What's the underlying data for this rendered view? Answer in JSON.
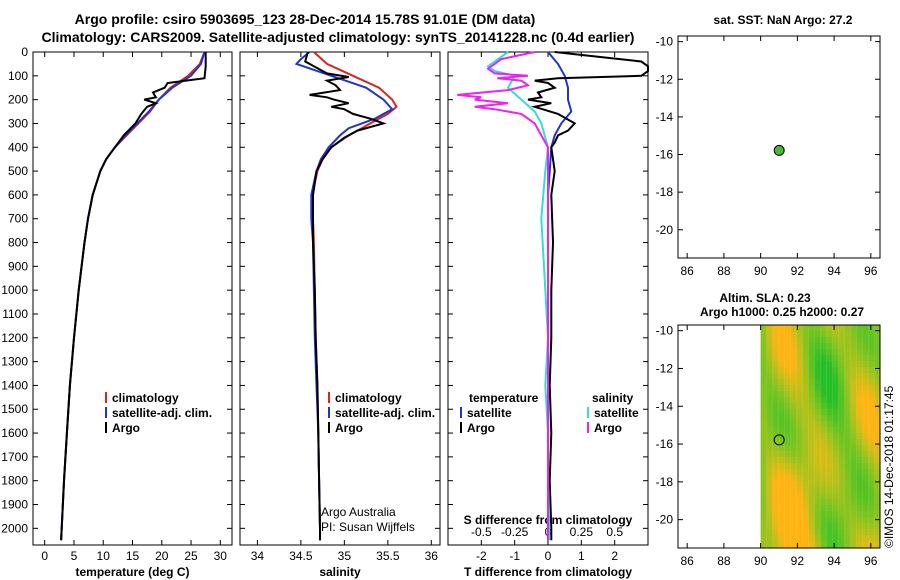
{
  "title_line1": "Argo profile: csiro 5903695_123 28-Dec-2014 15.78S 91.01E (DM data)",
  "title_line2": "Climatology: CARS2009. Satellite-adjusted climatology: synTS_20141228.nc (0.4d earlier)",
  "colors": {
    "clim": "#dd2222",
    "sat": "#2233cc",
    "argo": "#000000",
    "sal_clim": "#ee22ee",
    "sal_sat": "#33dddd",
    "sst_marker": "#44bb33"
  },
  "depth_axis": {
    "ticks": [
      0,
      100,
      200,
      300,
      400,
      500,
      600,
      700,
      800,
      900,
      1000,
      1100,
      1200,
      1300,
      1400,
      1500,
      1600,
      1700,
      1800,
      1900,
      2000
    ],
    "range": [
      0,
      2070
    ]
  },
  "credits": {
    "line1": "Argo Australia",
    "line2": "PI: Susan Wijffels"
  },
  "timestamp": "©IMOS 14-Dec-2018 01:17:45",
  "chart_data": [
    {
      "id": "temperature",
      "type": "line",
      "xlabel": "temperature (deg C)",
      "xticks": [
        0,
        5,
        10,
        15,
        20,
        25,
        30
      ],
      "xlim": [
        -2,
        32
      ],
      "legend": [
        "climatology",
        "satellite-adj. clim.",
        "Argo"
      ],
      "series": [
        {
          "name": "climatology",
          "depth": [
            0,
            50,
            100,
            150,
            200,
            250,
            300,
            350,
            400,
            450,
            500,
            600,
            700,
            800,
            900,
            1000,
            1200,
            1400,
            1600,
            1800,
            2000,
            2050
          ],
          "values": [
            27.3,
            26.5,
            24.5,
            21.5,
            19.5,
            18,
            16,
            14,
            12,
            10.5,
            9.5,
            8.2,
            7.4,
            6.8,
            6.3,
            5.8,
            5,
            4.3,
            3.8,
            3.3,
            2.9,
            2.8
          ]
        },
        {
          "name": "satellite-adj. clim.",
          "depth": [
            0,
            50,
            100,
            150,
            200,
            250,
            300,
            350,
            400,
            450,
            500,
            600,
            700,
            800,
            900,
            1000,
            1200,
            1400,
            1600,
            1800,
            2000,
            2050
          ],
          "values": [
            27.3,
            26.7,
            25,
            21.8,
            19.5,
            17.8,
            15.8,
            13.8,
            12,
            10.5,
            9.5,
            8.2,
            7.4,
            6.8,
            6.3,
            5.8,
            5,
            4.3,
            3.8,
            3.3,
            2.9,
            2.8
          ]
        },
        {
          "name": "Argo",
          "depth": [
            0,
            60,
            110,
            130,
            150,
            170,
            190,
            200,
            215,
            230,
            260,
            300,
            350,
            400,
            450,
            500,
            600,
            700,
            800,
            900,
            1000,
            1200,
            1400,
            1600,
            1800,
            2000,
            2050
          ],
          "values": [
            27.5,
            27.5,
            27.3,
            21,
            20.5,
            18.5,
            19,
            17,
            19,
            17.5,
            16.5,
            15.5,
            13.5,
            12,
            10.5,
            9.5,
            8.2,
            7.4,
            6.8,
            6.3,
            5.8,
            5,
            4.3,
            3.8,
            3.3,
            2.9,
            2.8
          ]
        }
      ]
    },
    {
      "id": "salinity",
      "type": "line",
      "xlabel": "salinity",
      "xticks": [
        34,
        34.5,
        35,
        35.5,
        36
      ],
      "xlim": [
        33.8,
        36.1
      ],
      "legend": [
        "climatology",
        "satellite-adj. clim.",
        "Argo"
      ],
      "series": [
        {
          "name": "climatology",
          "depth": [
            0,
            50,
            100,
            150,
            200,
            230,
            260,
            300,
            350,
            400,
            450,
            500,
            550,
            600,
            700,
            800,
            1000,
            1200,
            1400,
            1600,
            1800,
            2000,
            2050
          ],
          "values": [
            34.65,
            34.8,
            35.1,
            35.4,
            35.55,
            35.6,
            35.5,
            35.3,
            35.05,
            34.85,
            34.75,
            34.69,
            34.66,
            34.64,
            34.64,
            34.65,
            34.66,
            34.67,
            34.69,
            34.7,
            34.71,
            34.72,
            34.72
          ]
        },
        {
          "name": "satellite-adj. clim.",
          "depth": [
            0,
            30,
            50,
            100,
            150,
            200,
            240,
            280,
            320,
            350,
            400,
            450,
            500,
            550,
            600,
            700,
            800,
            1000,
            1200,
            1400,
            1600,
            1800,
            2000,
            2050
          ],
          "values": [
            34.6,
            34.5,
            34.45,
            34.85,
            35.25,
            35.45,
            35.55,
            35.35,
            35.05,
            34.95,
            34.82,
            34.73,
            34.68,
            34.65,
            34.62,
            34.62,
            34.64,
            34.65,
            34.66,
            34.68,
            34.7,
            34.71,
            34.72,
            34.72
          ]
        },
        {
          "name": "Argo",
          "depth": [
            0,
            40,
            60,
            90,
            105,
            120,
            140,
            160,
            180,
            190,
            200,
            215,
            230,
            240,
            260,
            280,
            300,
            330,
            360,
            400,
            450,
            500,
            600,
            800,
            1000,
            1200,
            1400,
            1600,
            1800,
            2000,
            2050
          ],
          "values": [
            34.58,
            34.55,
            34.65,
            34.8,
            35.05,
            34.8,
            34.9,
            34.95,
            34.6,
            34.8,
            34.88,
            35.05,
            34.85,
            35.0,
            35.1,
            35.3,
            35.45,
            35.15,
            35.0,
            34.85,
            34.75,
            34.68,
            34.64,
            34.64,
            34.66,
            34.67,
            34.69,
            34.7,
            34.71,
            34.72,
            34.72
          ]
        }
      ]
    },
    {
      "id": "difference",
      "type": "line",
      "xlabel": "T difference from climatology",
      "x2label": "S difference from climatology",
      "xticks": [
        -2,
        -1,
        0,
        1,
        2
      ],
      "x2ticks": [
        -0.5,
        -0.25,
        0,
        0.25,
        0.5
      ],
      "xlim": [
        -3,
        3
      ],
      "legend_t": {
        "header": "temperature",
        "items": [
          "satellite",
          "Argo"
        ]
      },
      "legend_s": {
        "header": "salinity",
        "items": [
          "satellite",
          "Argo"
        ]
      },
      "series": [
        {
          "name": "T satellite",
          "depth": [
            0,
            50,
            100,
            150,
            200,
            250,
            300,
            350,
            400,
            500,
            600,
            800,
            1000,
            1200,
            1400,
            1600,
            1800,
            2000,
            2050
          ],
          "values": [
            0,
            0.3,
            0.5,
            0.6,
            0.6,
            0.7,
            0.4,
            0.2,
            0.1,
            0.05,
            0,
            0,
            0,
            0,
            0,
            0,
            0,
            0,
            0
          ]
        },
        {
          "name": "T Argo",
          "depth": [
            0,
            20,
            40,
            60,
            80,
            100,
            110,
            120,
            130,
            150,
            170,
            190,
            200,
            215,
            230,
            260,
            300,
            330,
            350,
            380,
            400,
            500,
            600,
            800,
            1000,
            1200,
            1400,
            1600,
            1800,
            2000,
            2050
          ],
          "values": [
            0.2,
            1.5,
            2.8,
            3.0,
            3.0,
            2.8,
            0.3,
            -0.4,
            0,
            0.2,
            -0.3,
            -0.2,
            -0.6,
            0.1,
            -0.4,
            0.3,
            0.8,
            0.6,
            0.3,
            0.2,
            0.1,
            0.2,
            0.1,
            0.15,
            0.1,
            0.1,
            0.05,
            0.1,
            0.05,
            0.1,
            0.1
          ]
        },
        {
          "name": "S satellite",
          "depth": [
            0,
            40,
            60,
            80,
            100,
            150,
            200,
            250,
            300,
            400,
            500,
            700,
            900,
            1200,
            1400,
            1600,
            1800,
            2000,
            2050
          ],
          "values": [
            -0.3,
            -0.4,
            -0.45,
            -0.4,
            -0.25,
            -0.3,
            -0.2,
            -0.1,
            -0.05,
            0,
            -0.02,
            -0.05,
            -0.03,
            0,
            -0.02,
            0,
            0,
            0.01,
            0.01
          ]
        },
        {
          "name": "S Argo",
          "depth": [
            0,
            30,
            50,
            70,
            90,
            100,
            110,
            120,
            140,
            160,
            180,
            190,
            200,
            215,
            230,
            240,
            260,
            280,
            300,
            350,
            400,
            500,
            700,
            1000,
            1400,
            1600,
            1800,
            2000,
            2050
          ],
          "values": [
            -0.1,
            -0.35,
            -0.4,
            -0.45,
            -0.4,
            -0.15,
            -0.38,
            -0.2,
            -0.15,
            -0.3,
            -0.68,
            -0.5,
            -0.55,
            -0.3,
            -0.55,
            -0.4,
            -0.2,
            -0.15,
            -0.1,
            -0.05,
            0,
            0,
            0,
            0,
            0,
            0,
            0,
            0,
            0
          ]
        }
      ]
    },
    {
      "id": "sst_map",
      "type": "scatter",
      "title": "sat. SST: NaN Argo: 27.2",
      "xticks": [
        86,
        88,
        90,
        92,
        94,
        96
      ],
      "yticks": [
        -10,
        -12,
        -14,
        -16,
        -18,
        -20
      ],
      "xlim": [
        85.5,
        96.5
      ],
      "ylim": [
        -21.5,
        -9.7
      ],
      "points": [
        {
          "lon": 91.01,
          "lat": -15.78
        }
      ]
    },
    {
      "id": "sla_map",
      "type": "heatmap",
      "title1": "Altim. SLA: 0.23",
      "title2": "Argo h1000: 0.25 h2000: 0.27",
      "xticks": [
        86,
        88,
        90,
        92,
        94,
        96
      ],
      "yticks": [
        -10,
        -12,
        -14,
        -16,
        -18,
        -20
      ],
      "xlim": [
        85.5,
        96.5
      ],
      "ylim": [
        -21.5,
        -9.7
      ],
      "data_lon_start": 90,
      "points": [
        {
          "lon": 91.01,
          "lat": -15.78
        }
      ]
    }
  ]
}
